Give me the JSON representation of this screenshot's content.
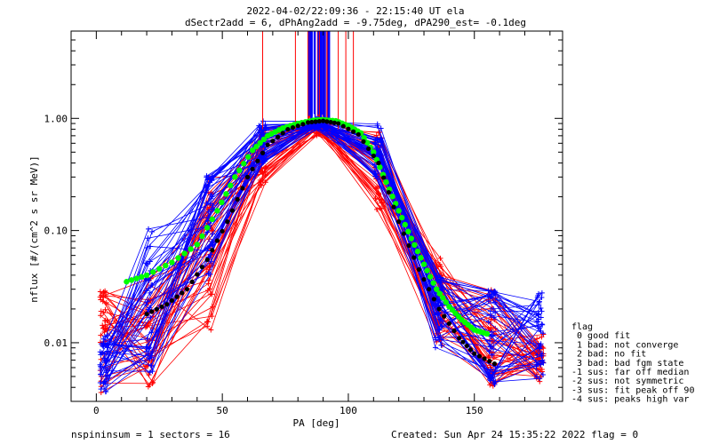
{
  "chart_data": {
    "type": "line",
    "title": "2022-04-02/22:09:36 - 22:15:40 UT ela",
    "subtitle": "dSectr2add = 6, dPhAng2add = -9.75deg, dPA290_est=  -0.1deg",
    "xlabel": "PA [deg]",
    "ylabel": "nflux [#/(cm^2 s sr MeV)]",
    "y_scale": "log",
    "xlim": [
      -10,
      185
    ],
    "ylim": [
      0.003,
      6.0
    ],
    "x_ticks": [
      0,
      50,
      100,
      150
    ],
    "y_ticks": [
      {
        "value": 0.01,
        "label": "0.01"
      },
      {
        "value": 0.1,
        "label": "0.10"
      },
      {
        "value": 1.0,
        "label": "1.00"
      }
    ],
    "grid": false,
    "colors": {
      "red_series": "#ff0000",
      "blue_series": "#0000ff",
      "green_fit": "#00ff00",
      "black_fit": "#000000"
    },
    "series": [
      {
        "color": "#00ff00",
        "style": "dots",
        "x": [
          12,
          20,
          30,
          40,
          48,
          55,
          62,
          68,
          74,
          80,
          86,
          90,
          95,
          100,
          105,
          110,
          115,
          120,
          125,
          130,
          135,
          140,
          145,
          150,
          155
        ],
        "y": [
          0.035,
          0.04,
          0.052,
          0.075,
          0.15,
          0.3,
          0.52,
          0.7,
          0.82,
          0.9,
          0.96,
          0.97,
          0.95,
          0.86,
          0.74,
          0.5,
          0.27,
          0.15,
          0.085,
          0.05,
          0.03,
          0.021,
          0.016,
          0.013,
          0.012
        ]
      },
      {
        "color": "#000000",
        "style": "dots",
        "x": [
          20,
          28,
          36,
          44,
          52,
          60,
          68,
          76,
          84,
          90,
          96,
          104,
          112,
          120,
          128,
          136,
          144,
          150,
          158
        ],
        "y": [
          0.018,
          0.022,
          0.03,
          0.055,
          0.12,
          0.3,
          0.58,
          0.8,
          0.92,
          0.95,
          0.9,
          0.72,
          0.4,
          0.12,
          0.045,
          0.02,
          0.011,
          0.008,
          0.0065
        ]
      }
    ],
    "bundles": {
      "x": [
        3,
        21,
        45,
        66,
        88,
        112,
        136,
        157,
        176
      ],
      "red": {
        "count": 42,
        "y_low": [
          0.0035,
          0.004,
          0.012,
          0.25,
          0.7,
          0.15,
          0.008,
          0.004,
          0.0045
        ],
        "y_high": [
          0.03,
          0.04,
          0.3,
          0.9,
          1.0,
          0.8,
          0.06,
          0.03,
          0.012
        ]
      },
      "blue": {
        "count": 42,
        "y_low": [
          0.0035,
          0.005,
          0.04,
          0.4,
          0.8,
          0.3,
          0.009,
          0.004,
          0.0045
        ],
        "y_high": [
          0.012,
          0.12,
          0.35,
          0.95,
          1.0,
          0.9,
          0.04,
          0.03,
          0.028
        ]
      }
    },
    "legend": {
      "placement": "right",
      "entries": [
        "flag",
        " 0 good fit",
        " 1 bad: not converge",
        " 2 bad: no fit",
        " 3 bad: bad fgm state",
        "-1 sus: far off median",
        "-2 sus: not symmetric",
        "-3 sus: fit peak off 90",
        "-4 sus: peaks high var"
      ]
    },
    "footer": {
      "left": "nspininsum =  1  sectors = 16",
      "right": "Created: Sun Apr 24 15:35:22 2022  flag = 0"
    }
  }
}
